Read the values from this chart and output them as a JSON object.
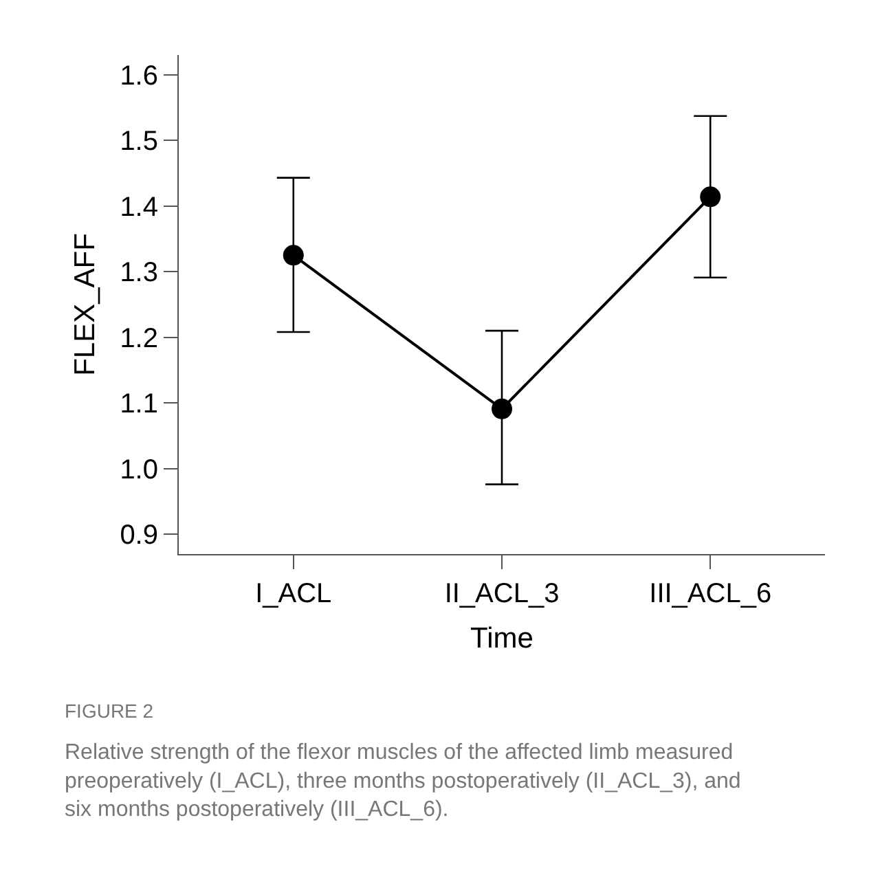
{
  "chart_data": {
    "type": "line",
    "xlabel": "Time",
    "ylabel": "FLEX_AFF",
    "categories": [
      "I_ACL",
      "II_ACL_3",
      "III_ACL_6"
    ],
    "values": [
      1.325,
      1.091,
      1.414
    ],
    "errors": [
      [
        1.208,
        1.443
      ],
      [
        0.976,
        1.21
      ],
      [
        1.291,
        1.537
      ]
    ],
    "color": "#000000",
    "ylim": [
      0.87,
      1.63
    ],
    "yticks": [
      0.9,
      {
        "value": 1.0,
        "label": "1.0"
      },
      1.1,
      1.2,
      1.3,
      1.4,
      1.5,
      1.6
    ],
    "marker": "circle",
    "line_style": "solid",
    "annotations": [
      "FIGURE 2",
      "Relative strength of the flexor muscles of the affected limb measured\npreoperatively (I_ACL), three months postoperatively (II_ACL_3), and\nsix months postoperatively (III_ACL_6)."
    ]
  }
}
